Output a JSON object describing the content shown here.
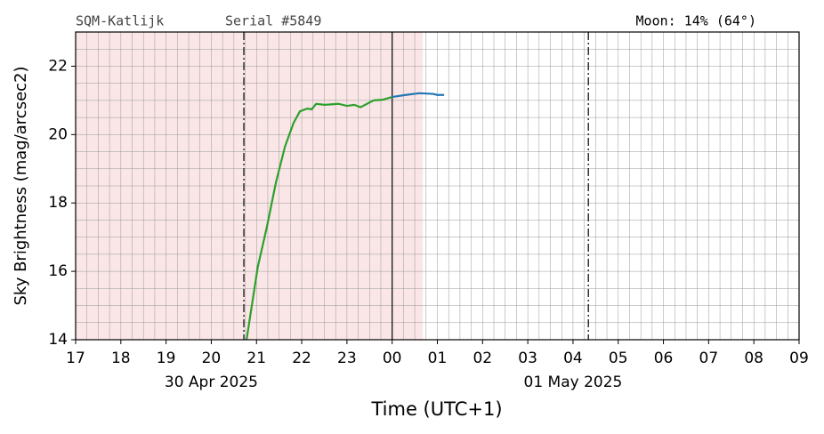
{
  "chart_data": {
    "type": "line",
    "header": {
      "left": "SQM-Katlijk",
      "middle": "Serial #5849",
      "right": "Moon: 14% (64°)"
    },
    "xlabel": "Time (UTC+1)",
    "ylabel": "Sky Brightness (mag/arcsec2)",
    "xlim": [
      17,
      33
    ],
    "ylim": [
      14,
      23
    ],
    "xticks": [
      17,
      18,
      19,
      20,
      21,
      22,
      23,
      {
        "value": 24,
        "label": "00"
      },
      {
        "value": 25,
        "label": "01"
      },
      {
        "value": 26,
        "label": "02"
      },
      {
        "value": 27,
        "label": "03"
      },
      {
        "value": 28,
        "label": "04"
      },
      {
        "value": 29,
        "label": "05"
      },
      {
        "value": 30,
        "label": "06"
      },
      {
        "value": 31,
        "label": "07"
      },
      {
        "value": 32,
        "label": "08"
      },
      {
        "value": 33,
        "label": "09"
      }
    ],
    "yticks": [
      14,
      16,
      18,
      20,
      22
    ],
    "xminor": 0.25,
    "yminor": 0.5,
    "grid": true,
    "date_labels": [
      {
        "x": 20,
        "label": "30 Apr 2025"
      },
      {
        "x": 28,
        "label": "01 May 2025"
      }
    ],
    "shaded": {
      "from": 17,
      "to": 24.68,
      "color": "#fae6e6"
    },
    "vlines": [
      {
        "x": 20.72,
        "style": "dashdot"
      },
      {
        "x": 24,
        "style": "solid"
      },
      {
        "x": 28.34,
        "style": "dashdot"
      }
    ],
    "series": [
      {
        "color": "#2ca02c",
        "x": [
          20.78,
          21.03,
          21.23,
          21.43,
          21.63,
          21.82,
          21.96,
          22.12,
          22.22,
          22.32,
          22.51,
          22.81,
          23.0,
          23.16,
          23.3,
          23.59,
          23.79,
          24.0
        ],
        "values": [
          14,
          16.14,
          17.3,
          18.6,
          19.65,
          20.34,
          20.68,
          20.76,
          20.74,
          20.9,
          20.87,
          20.9,
          20.84,
          20.87,
          20.8,
          21.0,
          21.02,
          21.1
        ]
      },
      {
        "color": "#1f77b4",
        "x": [
          24.0,
          24.3,
          24.6,
          24.9,
          25.0,
          25.15
        ],
        "values": [
          21.1,
          21.16,
          21.21,
          21.19,
          21.16,
          21.16
        ]
      }
    ]
  }
}
